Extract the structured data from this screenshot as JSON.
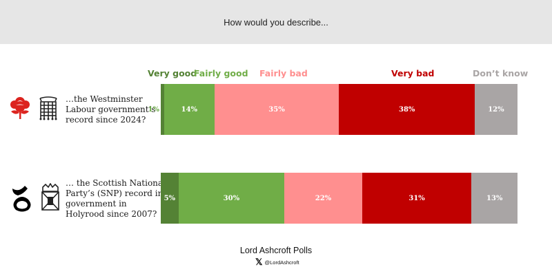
{
  "header": {
    "question": "How would you describe..."
  },
  "legend": [
    {
      "label": "Very good",
      "color": "#548235"
    },
    {
      "label": "Fairly good",
      "color": "#70ad47"
    },
    {
      "label": "Fairly bad",
      "color": "#ff8f8f"
    },
    {
      "label": "Very bad",
      "color": "#c00000"
    },
    {
      "label": "Don’t know",
      "color": "#a9a5a5"
    }
  ],
  "chart_data": {
    "type": "bar",
    "orientation": "horizontal",
    "stacked": true,
    "categories": [
      "…the Westminster Labour government’s record since 2024?",
      "… the Scottish National Party’s (SNP) record in government in Holyrood since 2007?"
    ],
    "series": [
      {
        "name": "Very good",
        "values": [
          1,
          5
        ],
        "labels": [
          "1%",
          "5%"
        ]
      },
      {
        "name": "Fairly good",
        "values": [
          14,
          30
        ],
        "labels": [
          "14%",
          "30%"
        ]
      },
      {
        "name": "Fairly bad",
        "values": [
          35,
          22
        ],
        "labels": [
          "35%",
          "22%"
        ]
      },
      {
        "name": "Very bad",
        "values": [
          38,
          31
        ],
        "labels": [
          "38%",
          "31%"
        ]
      },
      {
        "name": "Don’t know",
        "values": [
          12,
          13
        ],
        "labels": [
          "12%",
          "13%"
        ]
      }
    ],
    "xlim": [
      0,
      100
    ],
    "legend_position": "top"
  },
  "rows": [
    {
      "label_lines": [
        "…the Westminster",
        "Labour government’s",
        "record since 2024?"
      ],
      "icons": [
        "labour-rose-icon",
        "portcullis-icon"
      ]
    },
    {
      "label_lines": [
        "… the Scottish National",
        "Party’s (SNP) record in",
        "government in",
        "Holyrood since 2007?"
      ],
      "icons": [
        "snp-logo-icon",
        "scottish-parliament-crest-icon"
      ]
    }
  ],
  "footer": {
    "title": "Lord Ashcroft Polls",
    "x_glyph": "𝕏",
    "handle": "@LordAshcroft"
  }
}
